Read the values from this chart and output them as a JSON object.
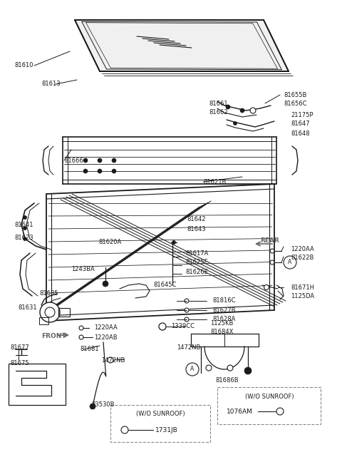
{
  "bg_color": "#ffffff",
  "lc": "#1a1a1a",
  "gc": "#666666",
  "figsize": [
    4.8,
    6.55
  ],
  "dpi": 100,
  "labels": [
    [
      "81610",
      30,
      88
    ],
    [
      "81613",
      68,
      116
    ],
    [
      "81661",
      298,
      145
    ],
    [
      "81662",
      298,
      158
    ],
    [
      "81655B",
      355,
      133
    ],
    [
      "81656C",
      355,
      146
    ],
    [
      "21175P",
      367,
      162
    ],
    [
      "81647",
      367,
      175
    ],
    [
      "81648",
      367,
      188
    ],
    [
      "81666",
      100,
      225
    ],
    [
      "81621B",
      285,
      253
    ],
    [
      "81641",
      42,
      310
    ],
    [
      "81623",
      42,
      328
    ],
    [
      "81620A",
      143,
      337
    ],
    [
      "81642",
      268,
      305
    ],
    [
      "81643",
      268,
      318
    ],
    [
      "81617A",
      247,
      355
    ],
    [
      "81625E",
      247,
      368
    ],
    [
      "81626E",
      247,
      381
    ],
    [
      "1220AA",
      352,
      348
    ],
    [
      "81622B",
      352,
      362
    ],
    [
      "1243BA",
      102,
      378
    ],
    [
      "81645C",
      140,
      405
    ],
    [
      "81671H",
      352,
      403
    ],
    [
      "1125DA",
      352,
      416
    ],
    [
      "81816C",
      265,
      420
    ],
    [
      "81627B",
      265,
      433
    ],
    [
      "81628A",
      265,
      446
    ],
    [
      "1339CC",
      228,
      456
    ],
    [
      "81635",
      57,
      415
    ],
    [
      "81631",
      40,
      430
    ],
    [
      "1220AA",
      120,
      460
    ],
    [
      "1220AB",
      120,
      473
    ],
    [
      "FRONT",
      60,
      470
    ],
    [
      "81677",
      22,
      490
    ],
    [
      "81681",
      117,
      490
    ],
    [
      "1472NB",
      141,
      504
    ],
    [
      "81675",
      22,
      520
    ],
    [
      "1125KB",
      292,
      453
    ],
    [
      "81684X",
      292,
      466
    ],
    [
      "1472NB",
      253,
      490
    ],
    [
      "83530B",
      130,
      563
    ],
    [
      "81686B",
      316,
      536
    ],
    [
      "REAR",
      360,
      340
    ],
    [
      "FRONT",
      57,
      472
    ]
  ]
}
